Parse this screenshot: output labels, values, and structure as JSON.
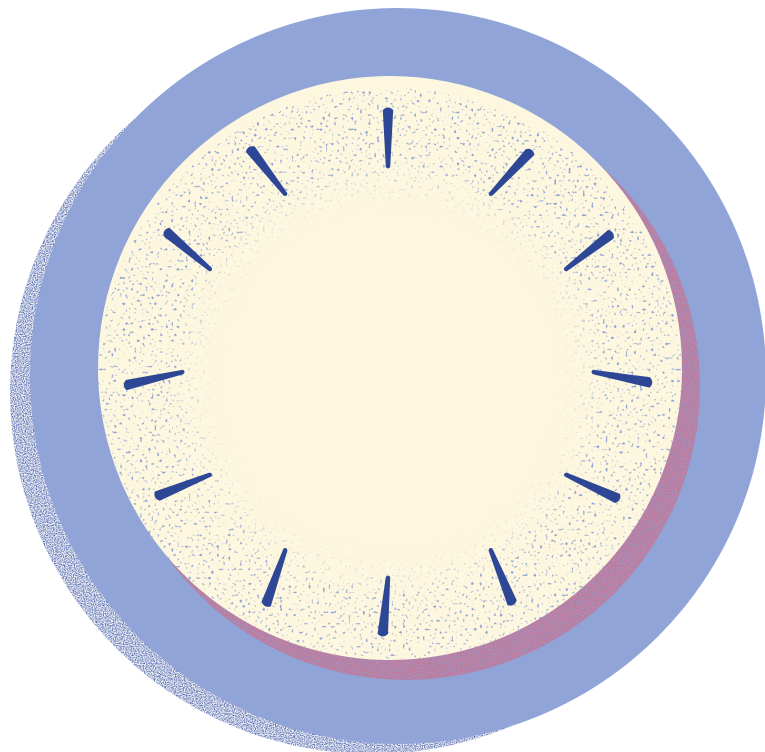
{
  "illustration": {
    "kind": "clock-face-icon",
    "has_numbers": false,
    "has_hands": false,
    "tick_count": 12
  },
  "colors": {
    "background": "#ffffff",
    "shadow_ring": "#2f4a9b",
    "outer_ring": "#91a4d8",
    "accent_edge": "#e05a6e",
    "face": "#fcf7de",
    "speckle": "#8ea2d6",
    "tick": "#2d4796"
  }
}
